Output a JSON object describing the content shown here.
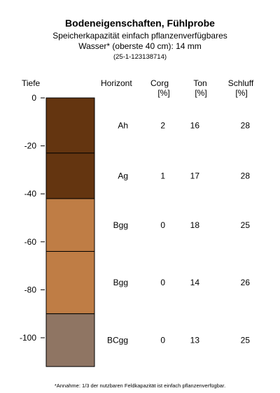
{
  "title": "Bodeneigenschaften, Fühlprobe",
  "subtitle_line1": "Speicherkapazität einfach pflanzenverfügbares",
  "subtitle_line2": "Wasser* (oberste 40 cm): 14 mm",
  "sample_id": "(25-1-123138714)",
  "headers": {
    "depth": "Tiefe",
    "horizon": "Horizont",
    "corg": "Corg",
    "corg_unit": "[%]",
    "ton": "Ton",
    "ton_unit": "[%]",
    "schluff": "Schluff",
    "schluff_unit": "[%]"
  },
  "chart_data": {
    "type": "table",
    "depth_axis": {
      "label": "Tiefe",
      "min": -110,
      "max": 0,
      "ticks": [
        0,
        -20,
        -40,
        -60,
        -80,
        -100
      ]
    },
    "layers": [
      {
        "top": 0,
        "bottom": -23,
        "color": "#643510",
        "horizon": "Ah",
        "corg": "2",
        "ton": "16",
        "schluff": "28"
      },
      {
        "top": -23,
        "bottom": -42,
        "color": "#643510",
        "horizon": "Ag",
        "corg": "1",
        "ton": "17",
        "schluff": "28"
      },
      {
        "top": -42,
        "bottom": -64,
        "color": "#bf7d45",
        "horizon": "Bgg",
        "corg": "0",
        "ton": "18",
        "schluff": "25"
      },
      {
        "top": -64,
        "bottom": -90,
        "color": "#bf7d45",
        "horizon": "Bgg",
        "corg": "0",
        "ton": "14",
        "schluff": "26"
      },
      {
        "top": -90,
        "bottom": -112,
        "color": "#8f7563",
        "horizon": "BCgg",
        "corg": "0",
        "ton": "13",
        "schluff": "25"
      }
    ]
  },
  "footnote": "*Annahme: 1/3 der nutzbaren Feldkapazität ist einfach pflanzenverfügbar."
}
